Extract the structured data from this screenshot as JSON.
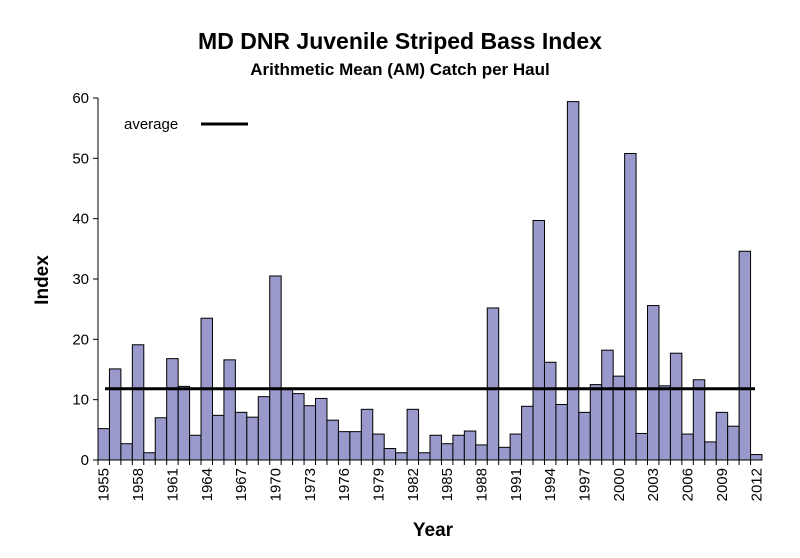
{
  "chart_data": {
    "type": "bar",
    "title": "MD DNR Juvenile Striped Bass Index",
    "subtitle": "Arithmetic Mean (AM) Catch per Haul",
    "xlabel": "Year",
    "ylabel": "Index",
    "ylim": [
      0,
      60
    ],
    "yticks": [
      "0",
      "10",
      "20",
      "30",
      "40",
      "50",
      "60"
    ],
    "grid": false,
    "legend": {
      "position": "top-left",
      "entries": [
        {
          "label": "average",
          "type": "line"
        }
      ]
    },
    "categories": [
      "1955",
      "1956",
      "1957",
      "1958",
      "1959",
      "1960",
      "1961",
      "1962",
      "1963",
      "1964",
      "1965",
      "1966",
      "1967",
      "1968",
      "1969",
      "1970",
      "1971",
      "1972",
      "1973",
      "1974",
      "1975",
      "1976",
      "1977",
      "1978",
      "1979",
      "1980",
      "1981",
      "1982",
      "1983",
      "1984",
      "1985",
      "1986",
      "1987",
      "1988",
      "1989",
      "1990",
      "1991",
      "1992",
      "1993",
      "1994",
      "1995",
      "1996",
      "1997",
      "1998",
      "1999",
      "2000",
      "2001",
      "2002",
      "2003",
      "2004",
      "2005",
      "2006",
      "2007",
      "2008",
      "2009",
      "2010",
      "2011",
      "2012"
    ],
    "x_tick_labels": [
      "1955",
      "1958",
      "1961",
      "1964",
      "1967",
      "1970",
      "1973",
      "1976",
      "1979",
      "1982",
      "1985",
      "1988",
      "1991",
      "1994",
      "1997",
      "2000",
      "2003",
      "2006",
      "2009",
      "2012"
    ],
    "series": [
      {
        "values": [
          5.2,
          15.1,
          2.7,
          19.1,
          1.2,
          7.0,
          16.8,
          12.2,
          4.1,
          23.5,
          7.4,
          16.6,
          7.9,
          7.1,
          10.5,
          30.5,
          11.7,
          11.0,
          9.0,
          10.2,
          6.6,
          4.7,
          4.7,
          8.4,
          4.3,
          1.9,
          1.2,
          8.4,
          1.2,
          4.1,
          2.7,
          4.1,
          4.8,
          2.5,
          25.2,
          2.1,
          4.3,
          8.9,
          39.7,
          16.2,
          9.2,
          59.4,
          7.9,
          12.5,
          18.2,
          13.9,
          50.8,
          4.4,
          25.6,
          12.3,
          17.7,
          4.3,
          13.3,
          3.0,
          7.9,
          5.6,
          34.6,
          0.9
        ],
        "color": "#9999cc"
      }
    ],
    "average_line": {
      "label": "average",
      "value": 11.8,
      "color": "#000000"
    }
  }
}
